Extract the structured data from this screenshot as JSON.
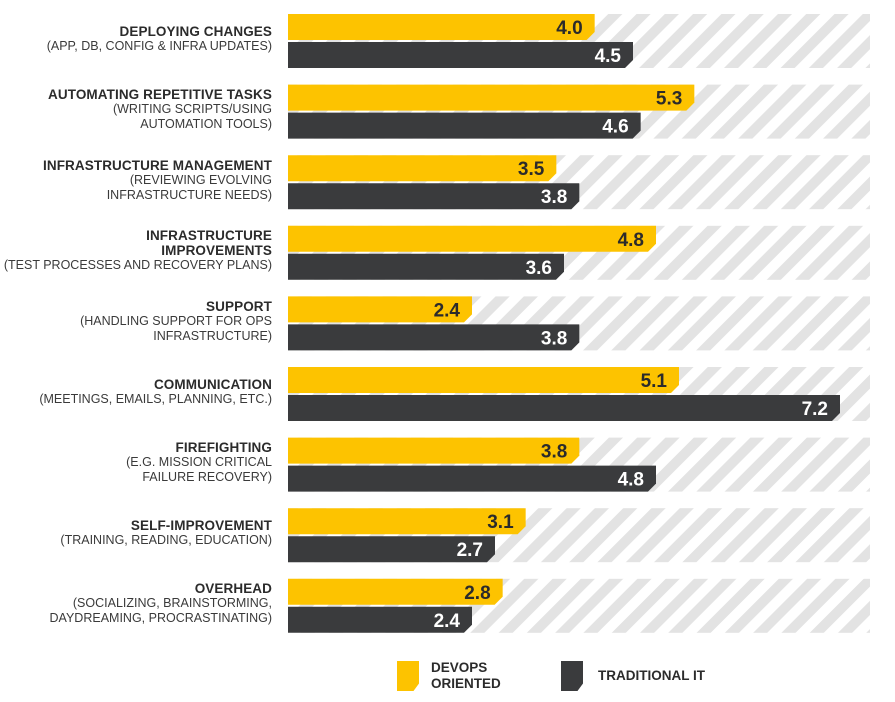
{
  "colors": {
    "devops": "#fdc300",
    "traditional": "#3a3b3d",
    "stripe_light": "#ffffff",
    "stripe_dark": "#e3e3e3",
    "value_text": "#2b2b2b",
    "value_text_dark": "#ffffff"
  },
  "chart_data": {
    "type": "bar",
    "orientation": "horizontal",
    "xlim": [
      0,
      8
    ],
    "grid": false,
    "legend_position": "bottom",
    "categories": [
      {
        "title": "DEPLOYING CHANGES",
        "subtitle": "(APP, DB, CONFIG & INFRA UPDATES)"
      },
      {
        "title": "AUTOMATING REPETITIVE TASKS",
        "subtitle": "(WRITING SCRIPTS/USING\nAUTOMATION TOOLS)"
      },
      {
        "title": "INFRASTRUCTURE MANAGEMENT",
        "subtitle": "(REVIEWING EVOLVING\nINFRASTRUCTURE NEEDS)"
      },
      {
        "title": "INFRASTRUCTURE\nIMPROVEMENTS",
        "subtitle": "(TEST PROCESSES AND RECOVERY PLANS)"
      },
      {
        "title": "SUPPORT",
        "subtitle": "(HANDLING SUPPORT FOR OPS\nINFRASTRUCTURE)"
      },
      {
        "title": "COMMUNICATION",
        "subtitle": "(MEETINGS, EMAILS, PLANNING, ETC.)"
      },
      {
        "title": "FIREFIGHTING",
        "subtitle": "(E.G. MISSION CRITICAL\nFAILURE RECOVERY)"
      },
      {
        "title": "SELF-IMPROVEMENT",
        "subtitle": "(TRAINING, READING, EDUCATION)"
      },
      {
        "title": "OVERHEAD",
        "subtitle": "(SOCIALIZING, BRAINSTORMING,\nDAYDREAMING, PROCRASTINATING)"
      }
    ],
    "series": [
      {
        "name": "DEVOPS\nORIENTED",
        "color": "#fdc300",
        "values": [
          4.0,
          5.3,
          3.5,
          4.8,
          2.4,
          5.1,
          3.8,
          3.1,
          2.8
        ],
        "labels": [
          "4.0",
          "5.3",
          "3.5",
          "4.8",
          "2.4",
          "5.1",
          "3.8",
          "3.1",
          "2.8"
        ]
      },
      {
        "name": "TRADITIONAL IT",
        "color": "#3a3b3d",
        "values": [
          4.5,
          4.6,
          3.8,
          3.6,
          3.8,
          7.2,
          4.8,
          2.7,
          2.4
        ],
        "labels": [
          "4.5",
          "4.6",
          "3.8",
          "3.6",
          "3.8",
          "7.2",
          "4.8",
          "2.7",
          "2.4"
        ]
      }
    ]
  }
}
